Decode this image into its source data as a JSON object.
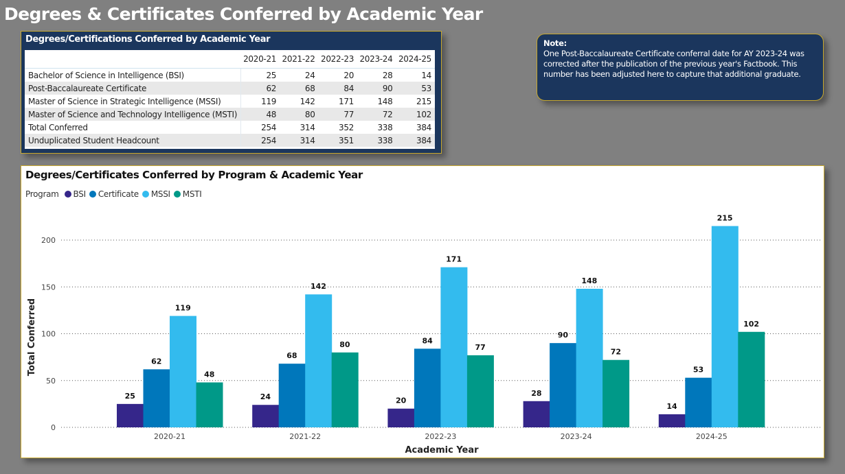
{
  "page": {
    "title": "Degrees & Certificates Conferred by Academic Year"
  },
  "summary_table": {
    "title": "Degrees/Certifications Conferred by Academic Year",
    "columns": [
      "",
      "2020-21",
      "2021-22",
      "2022-23",
      "2023-24",
      "2024-25"
    ],
    "rows": [
      {
        "label": "Bachelor of Science in Intelligence (BSI)",
        "values": [
          "25",
          "24",
          "20",
          "28",
          "14"
        ]
      },
      {
        "label": "Post-Baccalaureate Certificate",
        "values": [
          "62",
          "68",
          "84",
          "90",
          "53"
        ]
      },
      {
        "label": "Master of Science in Strategic Intelligence (MSSI)",
        "values": [
          "119",
          "142",
          "171",
          "148",
          "215"
        ]
      },
      {
        "label": "Master of Science and Technology Intelligence (MSTI)",
        "values": [
          "48",
          "80",
          "77",
          "72",
          "102"
        ]
      },
      {
        "label": "Total Conferred",
        "values": [
          "254",
          "314",
          "352",
          "338",
          "384"
        ]
      },
      {
        "label": "Unduplicated Student Headcount",
        "values": [
          "254",
          "314",
          "351",
          "338",
          "384"
        ]
      }
    ]
  },
  "note": {
    "heading": "Note:",
    "body": "One Post-Baccalaureate Certificate conferral date for AY 2023-24 was corrected after the publication of the previous year's Factbook. This number has been adjusted here to capture that additional graduate."
  },
  "colors": {
    "background": "#808080",
    "card_navy": "#1b365d",
    "card_border": "#c9a92e"
  },
  "chart_data": {
    "type": "bar",
    "title": "Degrees/Certificates Conferred by Program & Academic Year",
    "legend_title": "Program",
    "legend_position": "top-left",
    "xlabel": "Academic Year",
    "ylabel": "Total Conferred",
    "ylim": [
      0,
      200
    ],
    "yticks": [
      0,
      50,
      100,
      150,
      200
    ],
    "grid": true,
    "categories": [
      "2020-21",
      "2021-22",
      "2022-23",
      "2023-24",
      "2024-25"
    ],
    "series": [
      {
        "name": "BSI",
        "color": "#35268a",
        "values": [
          25,
          24,
          20,
          28,
          14
        ]
      },
      {
        "name": "Certificate",
        "color": "#0077bb",
        "values": [
          62,
          68,
          84,
          90,
          53
        ]
      },
      {
        "name": "MSSI",
        "color": "#33bbee",
        "values": [
          119,
          142,
          171,
          148,
          215
        ]
      },
      {
        "name": "MSTI",
        "color": "#009988",
        "values": [
          48,
          80,
          77,
          72,
          102
        ]
      }
    ],
    "data_labels": true
  }
}
